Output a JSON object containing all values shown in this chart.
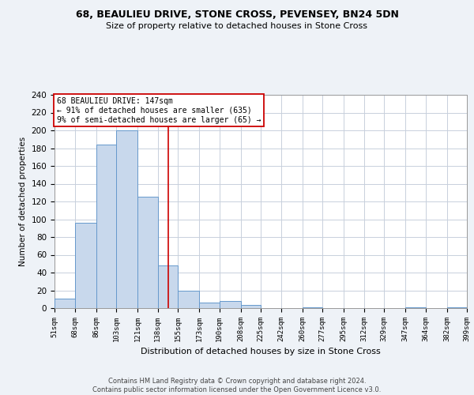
{
  "title1": "68, BEAULIEU DRIVE, STONE CROSS, PEVENSEY, BN24 5DN",
  "title2": "Size of property relative to detached houses in Stone Cross",
  "xlabel": "Distribution of detached houses by size in Stone Cross",
  "ylabel": "Number of detached properties",
  "bar_edges": [
    51,
    68,
    86,
    103,
    121,
    138,
    155,
    173,
    190,
    208,
    225,
    242,
    260,
    277,
    295,
    312,
    329,
    347,
    364,
    382,
    399
  ],
  "bar_heights": [
    11,
    96,
    184,
    200,
    125,
    48,
    20,
    6,
    8,
    4,
    0,
    0,
    1,
    0,
    0,
    0,
    0,
    1,
    0,
    1
  ],
  "bar_color": "#c8d8ec",
  "bar_edgecolor": "#6699cc",
  "reference_line_x": 147,
  "reference_line_color": "#cc0000",
  "annotation_line1": "68 BEAULIEU DRIVE: 147sqm",
  "annotation_line2": "← 91% of detached houses are smaller (635)",
  "annotation_line3": "9% of semi-detached houses are larger (65) →",
  "annotation_box_edgecolor": "#cc0000",
  "ylim": [
    0,
    240
  ],
  "yticks": [
    0,
    20,
    40,
    60,
    80,
    100,
    120,
    140,
    160,
    180,
    200,
    220,
    240
  ],
  "tick_labels": [
    "51sqm",
    "68sqm",
    "86sqm",
    "103sqm",
    "121sqm",
    "138sqm",
    "155sqm",
    "173sqm",
    "190sqm",
    "208sqm",
    "225sqm",
    "242sqm",
    "260sqm",
    "277sqm",
    "295sqm",
    "312sqm",
    "329sqm",
    "347sqm",
    "364sqm",
    "382sqm",
    "399sqm"
  ],
  "footer": "Contains HM Land Registry data © Crown copyright and database right 2024.\nContains public sector information licensed under the Open Government Licence v3.0.",
  "background_color": "#eef2f7",
  "plot_bg_color": "#ffffff",
  "grid_color": "#c8d0dc"
}
